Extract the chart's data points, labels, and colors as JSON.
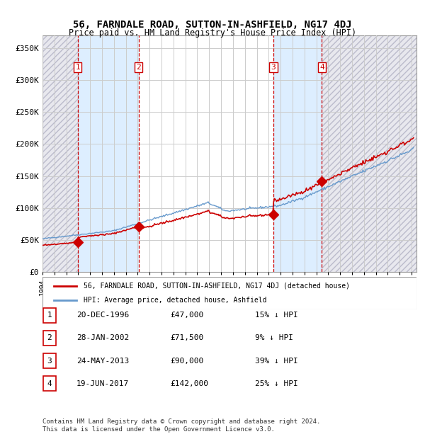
{
  "title": "56, FARNDALE ROAD, SUTTON-IN-ASHFIELD, NG17 4DJ",
  "subtitle": "Price paid vs. HM Land Registry's House Price Index (HPI)",
  "x_start_year": 1994,
  "x_end_year": 2025,
  "y_min": 0,
  "y_max": 350000,
  "y_ticks": [
    0,
    50000,
    100000,
    150000,
    200000,
    250000,
    300000,
    350000
  ],
  "y_tick_labels": [
    "£0",
    "£50K",
    "£100K",
    "£150K",
    "£200K",
    "£250K",
    "£300K",
    "£350K"
  ],
  "sale_dates": [
    "1996-12-20",
    "2002-01-28",
    "2013-05-24",
    "2017-06-19"
  ],
  "sale_prices": [
    47000,
    71500,
    90000,
    142000
  ],
  "sale_labels": [
    "1",
    "2",
    "3",
    "4"
  ],
  "hpi_color": "#6699cc",
  "price_color": "#cc0000",
  "sale_marker_color": "#cc0000",
  "dashed_line_color": "#cc0000",
  "shade_color": "#ddeeff",
  "hatch_color": "#bbbbcc",
  "grid_color": "#cccccc",
  "background_color": "#ffffff",
  "legend_items": [
    {
      "label": "56, FARNDALE ROAD, SUTTON-IN-ASHFIELD, NG17 4DJ (detached house)",
      "color": "#cc0000"
    },
    {
      "label": "HPI: Average price, detached house, Ashfield",
      "color": "#6699cc"
    }
  ],
  "table_rows": [
    {
      "num": "1",
      "date": "20-DEC-1996",
      "price": "£47,000",
      "hpi": "15% ↓ HPI"
    },
    {
      "num": "2",
      "date": "28-JAN-2002",
      "price": "£71,500",
      "hpi": "9% ↓ HPI"
    },
    {
      "num": "3",
      "date": "24-MAY-2013",
      "price": "£90,000",
      "hpi": "39% ↓ HPI"
    },
    {
      "num": "4",
      "date": "19-JUN-2017",
      "price": "£142,000",
      "hpi": "25% ↓ HPI"
    }
  ],
  "footnote": "Contains HM Land Registry data © Crown copyright and database right 2024.\nThis data is licensed under the Open Government Licence v3.0."
}
